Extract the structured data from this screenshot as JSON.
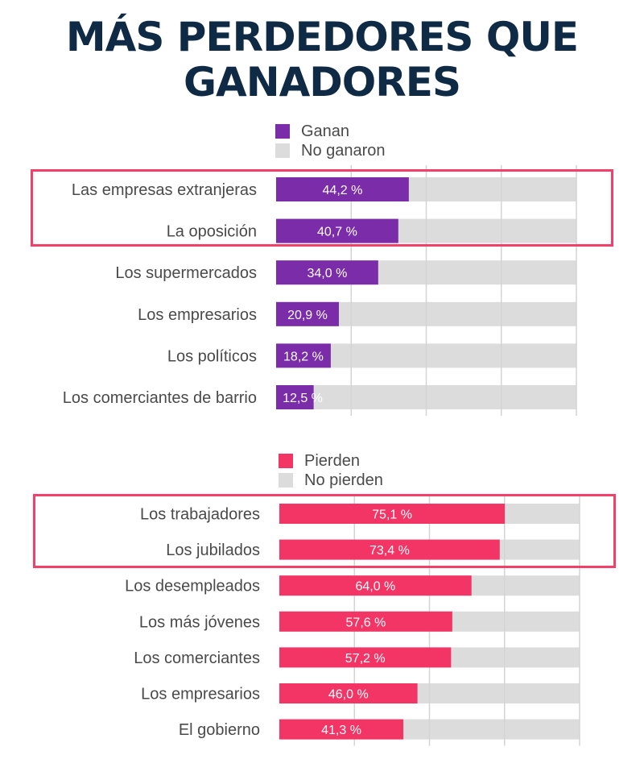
{
  "title": [
    "MÁS PERDEDORES QUE",
    "GANADORES"
  ],
  "colors": {
    "title": "#0f2a44",
    "ganan": "#7b2ca8",
    "pierden": "#f23565",
    "rest": "#dcdcdc",
    "highlight": "#f2406b",
    "label": "#4a4a4a"
  },
  "chart_data": [
    {
      "type": "bar",
      "orientation": "horizontal",
      "stacked_to": 100,
      "legend": [
        "Ganan",
        "No ganaron"
      ],
      "categories": [
        "Las empresas extranjeras",
        "La oposición",
        "Los supermercados",
        "Los empresarios",
        "Los políticos",
        "Los comerciantes de barrio"
      ],
      "values": [
        44.2,
        40.7,
        34.0,
        20.9,
        18.2,
        12.5
      ],
      "value_labels": [
        "44,2 %",
        "40,7 %",
        "34,0 %",
        "20,9 %",
        "18,2 %",
        "12,5 %"
      ],
      "xlim": [
        0,
        100
      ],
      "grid": true,
      "highlighted_categories": [
        "Las empresas extranjeras",
        "La oposición"
      ]
    },
    {
      "type": "bar",
      "orientation": "horizontal",
      "stacked_to": 100,
      "legend": [
        "Pierden",
        "No pierden"
      ],
      "categories": [
        "Los trabajadores",
        "Los jubilados",
        "Los desempleados",
        "Los más jóvenes",
        "Los comerciantes",
        "Los empresarios",
        "El gobierno"
      ],
      "values": [
        75.1,
        73.4,
        64.0,
        57.6,
        57.2,
        46.0,
        41.3
      ],
      "value_labels": [
        "75,1 %",
        "73,4 %",
        "64,0 %",
        "57,6 %",
        "57,2 %",
        "46,0 %",
        "41,3 %"
      ],
      "xlim": [
        0,
        100
      ],
      "grid": true,
      "highlighted_categories": [
        "Los trabajadores",
        "Los jubilados"
      ]
    }
  ]
}
